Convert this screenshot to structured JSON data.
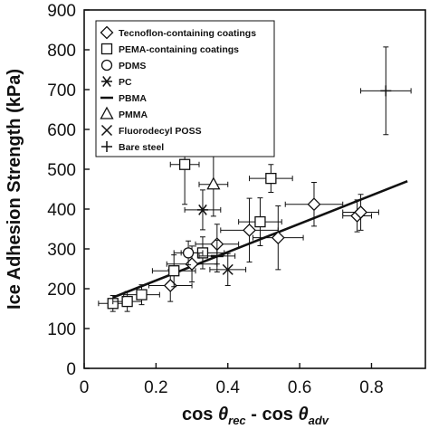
{
  "chart_data": {
    "type": "scatter",
    "title": "",
    "xlabel": "cos θrec - cos θadv",
    "xlabel_parts": {
      "cos1": "cos ",
      "theta1": "θ",
      "sub1": "rec",
      "mid": " - cos ",
      "theta2": "θ",
      "sub2": "adv"
    },
    "ylabel": "Ice Adhesion Strength (kPa)",
    "xlim": [
      0,
      0.95
    ],
    "ylim": [
      0,
      900
    ],
    "xticks": [
      0,
      0.2,
      0.4,
      0.6,
      0.8
    ],
    "xtick_labels": [
      "0",
      "0.2",
      "0.4",
      "0.6",
      "0.8"
    ],
    "yticks": [
      0,
      100,
      200,
      300,
      400,
      500,
      600,
      700,
      800,
      900
    ],
    "ytick_labels": [
      "0",
      "100",
      "200",
      "300",
      "400",
      "500",
      "600",
      "700",
      "800",
      "900"
    ],
    "grid": false,
    "legend_position": "top-left",
    "fit_line": {
      "x": [
        0.08,
        0.9
      ],
      "y": [
        178,
        470
      ]
    },
    "series": [
      {
        "name": "Tecnoflon-containing coatings",
        "marker": "diamond",
        "points": [
          {
            "x": 0.24,
            "y": 208,
            "xerr": 0.06,
            "yerr": 40
          },
          {
            "x": 0.3,
            "y": 262,
            "xerr": 0.07,
            "yerr": 45
          },
          {
            "x": 0.37,
            "y": 312,
            "xerr": 0.06,
            "yerr": 50
          },
          {
            "x": 0.46,
            "y": 347,
            "xerr": 0.08,
            "yerr": 80
          },
          {
            "x": 0.54,
            "y": 328,
            "xerr": 0.07,
            "yerr": 80
          },
          {
            "x": 0.64,
            "y": 412,
            "xerr": 0.08,
            "yerr": 55
          },
          {
            "x": 0.76,
            "y": 383,
            "xerr": 0.04,
            "yerr": 40
          },
          {
            "x": 0.77,
            "y": 392,
            "xerr": 0.05,
            "yerr": 45
          }
        ]
      },
      {
        "name": "PEMA-containing coatings",
        "marker": "square",
        "points": [
          {
            "x": 0.08,
            "y": 163,
            "xerr": 0.04,
            "yerr": 20
          },
          {
            "x": 0.12,
            "y": 168,
            "xerr": 0.04,
            "yerr": 25
          },
          {
            "x": 0.16,
            "y": 185,
            "xerr": 0.05,
            "yerr": 25
          },
          {
            "x": 0.25,
            "y": 245,
            "xerr": 0.06,
            "yerr": 40
          },
          {
            "x": 0.28,
            "y": 512,
            "xerr": 0.04,
            "yerr": 100
          },
          {
            "x": 0.33,
            "y": 290,
            "xerr": 0.06,
            "yerr": 40
          },
          {
            "x": 0.49,
            "y": 368,
            "xerr": 0.06,
            "yerr": 60
          },
          {
            "x": 0.52,
            "y": 477,
            "xerr": 0.06,
            "yerr": 35
          }
        ]
      },
      {
        "name": "PDMS",
        "marker": "circle",
        "points": [
          {
            "x": 0.29,
            "y": 290,
            "xerr": 0.04,
            "yerr": 30
          }
        ]
      },
      {
        "name": "PC",
        "marker": "asterisk",
        "points": [
          {
            "x": 0.33,
            "y": 398,
            "xerr": 0.05,
            "yerr": 50
          }
        ]
      },
      {
        "name": "PBMA",
        "marker": "dash",
        "points": [
          {
            "x": 0.37,
            "y": 282,
            "xerr": 0.05,
            "yerr": 40
          }
        ]
      },
      {
        "name": "PMMA",
        "marker": "triangle",
        "points": [
          {
            "x": 0.36,
            "y": 462,
            "xerr": 0.04,
            "yerr": 80
          }
        ]
      },
      {
        "name": "Fluorodecyl POSS",
        "marker": "x",
        "points": [
          {
            "x": 0.4,
            "y": 248,
            "xerr": 0.05,
            "yerr": 40
          }
        ]
      },
      {
        "name": "Bare steel",
        "marker": "plus",
        "points": [
          {
            "x": 0.84,
            "y": 697,
            "xerr": 0.07,
            "yerr": 110
          }
        ]
      }
    ]
  }
}
